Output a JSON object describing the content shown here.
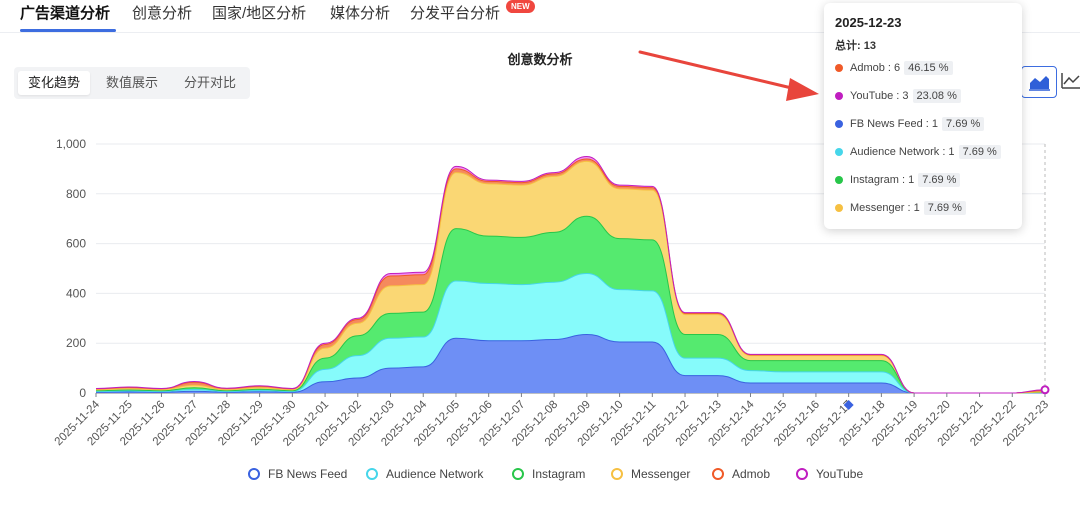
{
  "tabs": [
    {
      "label": "广告渠道分析",
      "active": true
    },
    {
      "label": "创意分析",
      "active": false
    },
    {
      "label": "国家/地区分析",
      "active": false
    },
    {
      "label": "媒体分析",
      "active": false
    },
    {
      "label": "分发平台分析",
      "active": false,
      "badge": "NEW"
    }
  ],
  "view_toggle": [
    "变化趋势",
    "数值展示",
    "分开对比"
  ],
  "tooltip": {
    "date": "2025-12-23",
    "total_label": "总计: 13",
    "rows": [
      {
        "label": "Admob : 6",
        "pct": "46.15 %",
        "color": "#f05a28"
      },
      {
        "label": "YouTube : 3",
        "pct": "23.08 %",
        "color": "#c01ec0"
      },
      {
        "label": "FB News Feed : 1",
        "pct": "7.69 %",
        "color": "#3a62e0"
      },
      {
        "label": "Audience Network : 1",
        "pct": "7.69 %",
        "color": "#46d6ea"
      },
      {
        "label": "Instagram : 1",
        "pct": "7.69 %",
        "color": "#28c64a"
      },
      {
        "label": "Messenger : 1",
        "pct": "7.69 %",
        "color": "#f6c042"
      }
    ]
  },
  "toolbar": {
    "download": "download-icon",
    "area": "area-chart-icon",
    "line": "line-chart-icon"
  },
  "chart_data": {
    "type": "area",
    "stacked": true,
    "title": "创意数分析",
    "x": [
      "2025-11-24",
      "2025-11-25",
      "2025-11-26",
      "2025-11-27",
      "2025-11-28",
      "2025-11-29",
      "2025-11-30",
      "2025-12-01",
      "2025-12-02",
      "2025-12-03",
      "2025-12-04",
      "2025-12-05",
      "2025-12-06",
      "2025-12-07",
      "2025-12-08",
      "2025-12-09",
      "2025-12-10",
      "2025-12-11",
      "2025-12-12",
      "2025-12-13",
      "2025-12-14",
      "2025-12-15",
      "2025-12-16",
      "2025-12-17",
      "2025-12-18",
      "2025-12-19",
      "2025-12-20",
      "2025-12-21",
      "2025-12-22",
      "2025-12-23"
    ],
    "ylim": [
      0,
      1000
    ],
    "yticks": [
      0,
      200,
      400,
      600,
      800,
      1000
    ],
    "ytick_labels": [
      "0",
      "200",
      "400",
      "600",
      "800",
      "1,000"
    ],
    "grid": true,
    "legend_position": "bottom",
    "series": [
      {
        "name": "FB News Feed",
        "color": "#6e8ff5",
        "stroke": "#3a62e0",
        "values": [
          3,
          4,
          3,
          7,
          3,
          5,
          3,
          45,
          60,
          100,
          105,
          220,
          210,
          210,
          215,
          235,
          205,
          205,
          70,
          70,
          40,
          40,
          40,
          40,
          40,
          0,
          0,
          0,
          0,
          1
        ]
      },
      {
        "name": "Audience Network",
        "color": "#86fbfb",
        "stroke": "#46d6ea",
        "values": [
          3,
          4,
          3,
          7,
          3,
          5,
          3,
          50,
          90,
          120,
          120,
          230,
          230,
          225,
          230,
          245,
          210,
          205,
          70,
          70,
          50,
          45,
          45,
          45,
          45,
          0,
          0,
          0,
          0,
          1
        ]
      },
      {
        "name": "Instagram",
        "color": "#55ea6f",
        "stroke": "#28c64a",
        "values": [
          3,
          4,
          3,
          7,
          3,
          5,
          3,
          45,
          80,
          100,
          100,
          210,
          190,
          190,
          200,
          230,
          205,
          205,
          95,
          95,
          40,
          45,
          45,
          45,
          45,
          0,
          0,
          0,
          0,
          1
        ]
      },
      {
        "name": "Messenger",
        "color": "#fad774",
        "stroke": "#f6c042",
        "values": [
          4,
          5,
          4,
          10,
          4,
          6,
          4,
          40,
          50,
          110,
          110,
          225,
          210,
          210,
          225,
          220,
          200,
          200,
          80,
          80,
          20,
          20,
          20,
          20,
          20,
          0,
          0,
          0,
          0,
          1
        ]
      },
      {
        "name": "Admob",
        "color": "#f58a5d",
        "stroke": "#f05a28",
        "values": [
          4,
          5,
          4,
          12,
          5,
          6,
          4,
          15,
          15,
          40,
          40,
          15,
          10,
          10,
          10,
          10,
          10,
          10,
          5,
          5,
          3,
          3,
          3,
          3,
          3,
          0,
          0,
          0,
          0,
          6
        ]
      },
      {
        "name": "YouTube",
        "color": "#f08ef0",
        "stroke": "#c01ec0",
        "values": [
          1,
          2,
          1,
          3,
          1,
          2,
          1,
          5,
          5,
          10,
          10,
          10,
          5,
          5,
          5,
          10,
          5,
          5,
          3,
          3,
          2,
          2,
          2,
          2,
          2,
          0,
          0,
          0,
          0,
          3
        ]
      }
    ]
  }
}
